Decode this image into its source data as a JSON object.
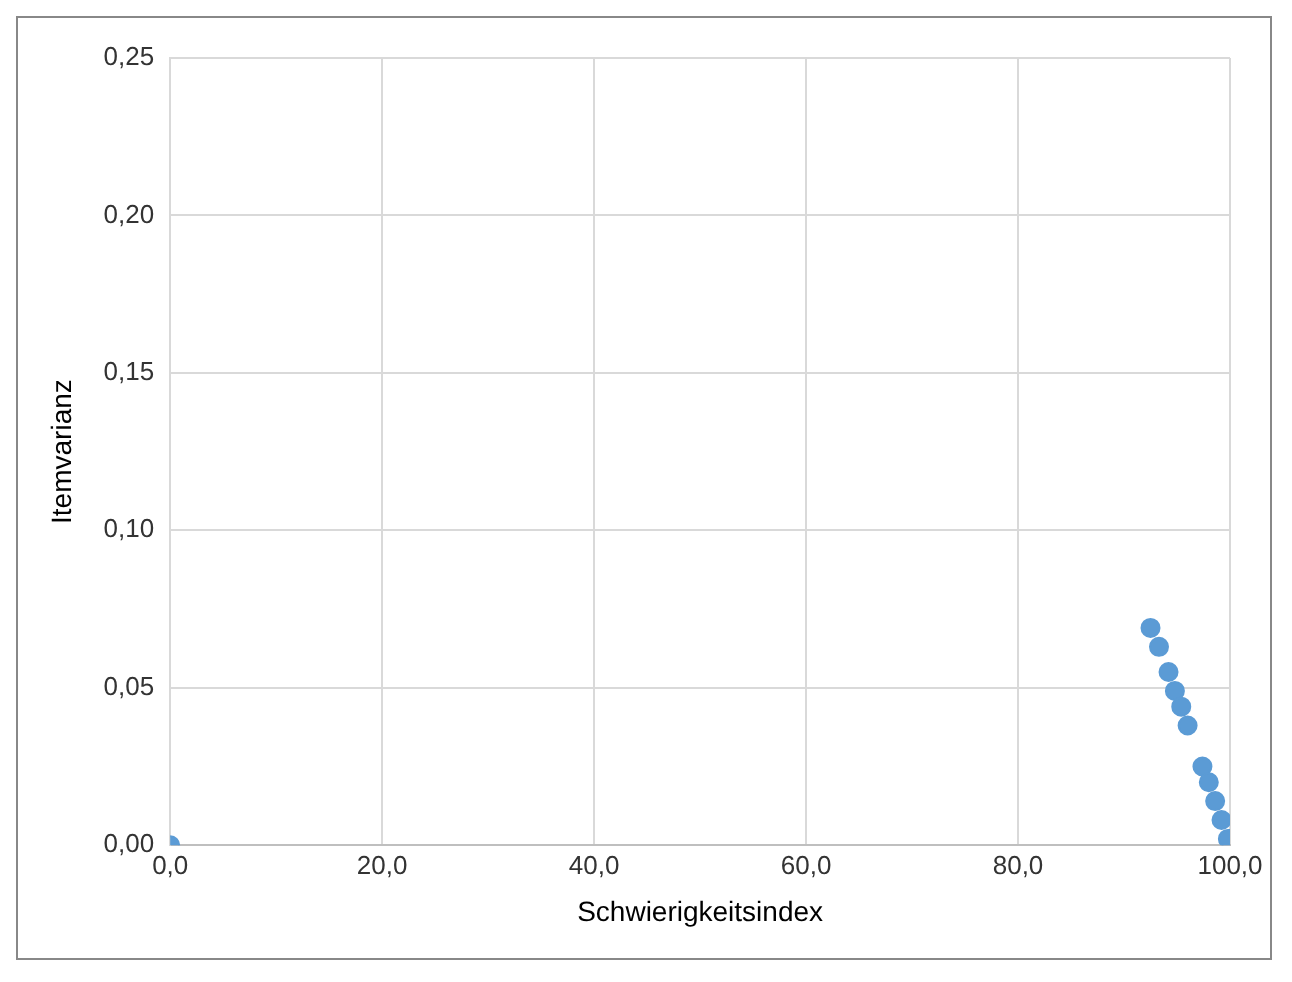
{
  "chart_data": {
    "type": "scatter",
    "xlabel": "Schwierigkeitsindex",
    "ylabel": "Itemvarianz",
    "x": [
      0,
      92.5,
      93.3,
      94.2,
      94.8,
      95.4,
      96.0,
      97.4,
      98.0,
      98.6,
      99.2,
      99.8
    ],
    "values": [
      0,
      0.069,
      0.063,
      0.055,
      0.049,
      0.044,
      0.038,
      0.025,
      0.02,
      0.014,
      0.008,
      0.002
    ],
    "color": "#5b9bd5",
    "marker": "circle",
    "grid": true,
    "legend": false,
    "xlim": [
      0,
      100
    ],
    "xticks": [
      {
        "value": 0,
        "label": "0,0"
      },
      {
        "value": 20,
        "label": "20,0"
      },
      {
        "value": 40,
        "label": "40,0"
      },
      {
        "value": 60,
        "label": "60,0"
      },
      {
        "value": 80,
        "label": "80,0"
      },
      {
        "value": 100,
        "label": "100,0"
      }
    ],
    "ylim": [
      0,
      0.25
    ],
    "yticks": [
      {
        "value": 0,
        "label": "0,00"
      },
      {
        "value": 0.05,
        "label": "0,05"
      },
      {
        "value": 0.1,
        "label": "0,10"
      },
      {
        "value": 0.15,
        "label": "0,15"
      },
      {
        "value": 0.2,
        "label": "0,20"
      },
      {
        "value": 0.25,
        "label": "0,25"
      }
    ]
  }
}
